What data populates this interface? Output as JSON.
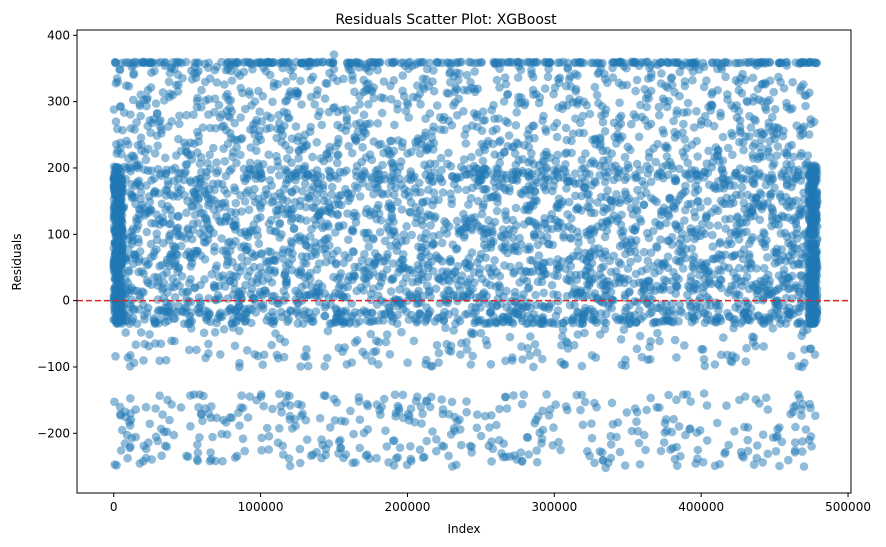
{
  "chart_data": {
    "type": "scatter",
    "title": "Residuals Scatter Plot: XGBoost",
    "xlabel": "Index",
    "ylabel": "Residuals",
    "xlim": [
      -25000,
      502000
    ],
    "ylim": [
      -290,
      408
    ],
    "x_ticks": [
      0,
      100000,
      200000,
      300000,
      400000,
      500000
    ],
    "x_tick_labels": [
      "0",
      "100000",
      "200000",
      "300000",
      "400000",
      "500000"
    ],
    "y_ticks": [
      -200,
      -100,
      0,
      100,
      200,
      300,
      400
    ],
    "y_tick_labels": [
      "−200",
      "−100",
      "0",
      "100",
      "200",
      "300",
      "400"
    ],
    "point_color": "#1f77b4",
    "point_alpha": 0.5,
    "reference_line": {
      "y": 0,
      "color": "#d62728",
      "style": "dashed"
    },
    "data_range": {
      "x_min": 0,
      "x_max": 479000,
      "dense_band": [
        -35,
        200
      ],
      "cap": 360,
      "max": 371,
      "min": -252
    },
    "notable_points": [
      {
        "x": 150000,
        "y": 371
      },
      {
        "x": 335000,
        "y": -252
      },
      {
        "x": 470000,
        "y": -250
      },
      {
        "x": 5000,
        "y": -226
      }
    ]
  }
}
